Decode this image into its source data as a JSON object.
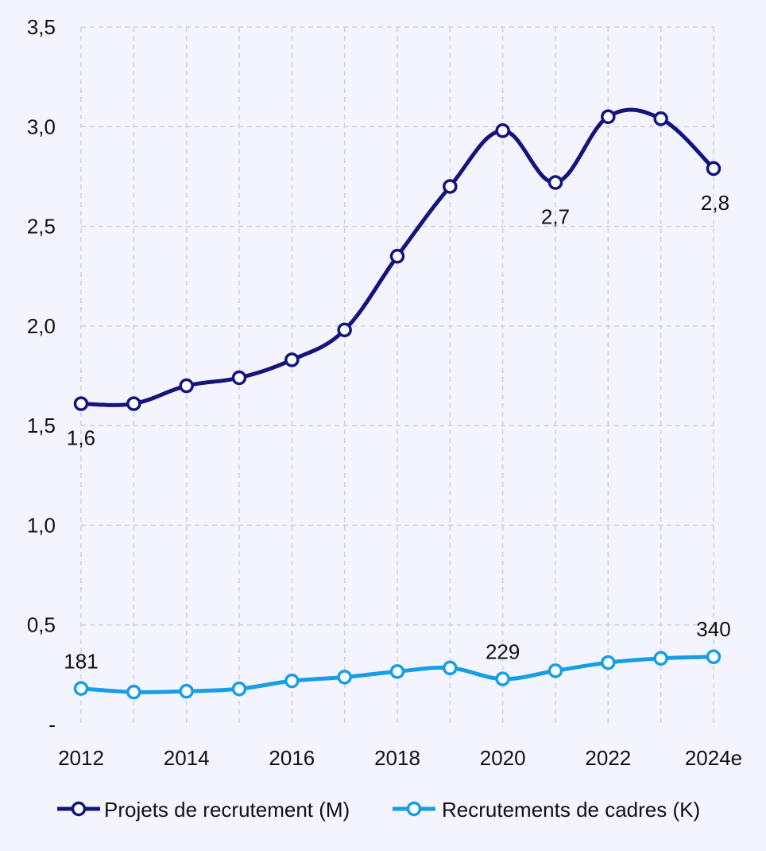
{
  "chart_data": {
    "type": "line",
    "x": [
      "2012",
      "2013",
      "2014",
      "2015",
      "2016",
      "2017",
      "2018",
      "2019",
      "2020",
      "2021",
      "2022",
      "2023",
      "2024e"
    ],
    "x_tick_labels": [
      "2012",
      "2014",
      "2016",
      "2018",
      "2020",
      "2022",
      "2024e"
    ],
    "y_tick_labels": [
      "-",
      "0,5",
      "1,0",
      "1,5",
      "2,0",
      "2,5",
      "3,0",
      "3,5"
    ],
    "ylim": [
      0,
      3.5
    ],
    "grid": "dashed, both axes",
    "legend_position": "bottom",
    "series": [
      {
        "name": "Projets de recrutement (M)",
        "color": "#14147d",
        "values": [
          1.61,
          1.61,
          1.7,
          1.74,
          1.83,
          1.98,
          2.35,
          2.7,
          2.98,
          2.72,
          3.05,
          3.04,
          2.79
        ],
        "data_labels": [
          {
            "index": 0,
            "text": "1,6"
          },
          {
            "index": 9,
            "text": "2,7"
          },
          {
            "index": 12,
            "text": "2,8"
          }
        ]
      },
      {
        "name": "Recrutements de cadres (K)",
        "color": "#169ee6",
        "values": [
          0.181,
          0.163,
          0.167,
          0.179,
          0.219,
          0.238,
          0.266,
          0.284,
          0.229,
          0.27,
          0.311,
          0.332,
          0.34
        ],
        "data_labels": [
          {
            "index": 0,
            "text": "181"
          },
          {
            "index": 8,
            "text": "229"
          },
          {
            "index": 12,
            "text": "340"
          }
        ]
      }
    ]
  }
}
